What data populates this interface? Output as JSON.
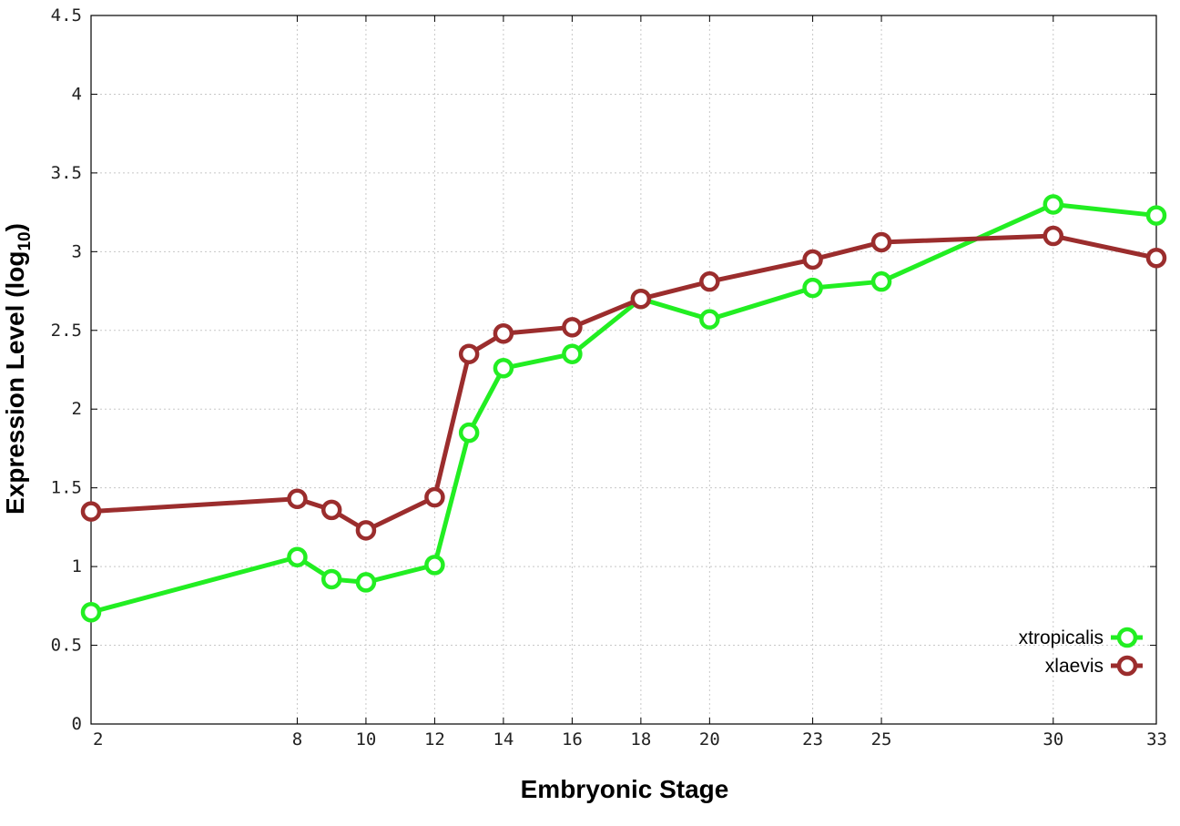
{
  "chart_data": {
    "type": "line",
    "xlabel": "Embryonic Stage",
    "ylabel_main": "Expression Level (log",
    "ylabel_sub": "10",
    "ylabel_close": ")",
    "xlim": [
      2,
      33
    ],
    "ylim": [
      0,
      4.5
    ],
    "x_ticks": [
      2,
      8,
      10,
      12,
      14,
      16,
      18,
      20,
      23,
      25,
      30,
      33
    ],
    "y_ticks": [
      0,
      0.5,
      1,
      1.5,
      2,
      2.5,
      3,
      3.5,
      4,
      4.5
    ],
    "y_tick_labels": [
      "0",
      "0.5",
      "1",
      "1.5",
      "2",
      "2.5",
      "3",
      "3.5",
      "4",
      "4.5"
    ],
    "grid": true,
    "legend_position": "bottom-right",
    "series": [
      {
        "name": "xtropicalis",
        "color": "#22ee22",
        "points": [
          [
            2,
            0.71
          ],
          [
            8,
            1.06
          ],
          [
            9,
            0.92
          ],
          [
            10,
            0.9
          ],
          [
            12,
            1.01
          ],
          [
            13,
            1.85
          ],
          [
            14,
            2.26
          ],
          [
            16,
            2.35
          ],
          [
            18,
            2.7
          ],
          [
            20,
            2.57
          ],
          [
            23,
            2.77
          ],
          [
            25,
            2.81
          ],
          [
            30,
            3.3
          ],
          [
            33,
            3.23
          ]
        ]
      },
      {
        "name": "xlaevis",
        "color": "#9b2d2d",
        "points": [
          [
            2,
            1.35
          ],
          [
            8,
            1.43
          ],
          [
            9,
            1.36
          ],
          [
            10,
            1.23
          ],
          [
            12,
            1.44
          ],
          [
            13,
            2.35
          ],
          [
            14,
            2.48
          ],
          [
            16,
            2.52
          ],
          [
            18,
            2.7
          ],
          [
            20,
            2.81
          ],
          [
            23,
            2.95
          ],
          [
            25,
            3.06
          ],
          [
            30,
            3.1
          ],
          [
            33,
            2.96
          ]
        ]
      }
    ]
  }
}
